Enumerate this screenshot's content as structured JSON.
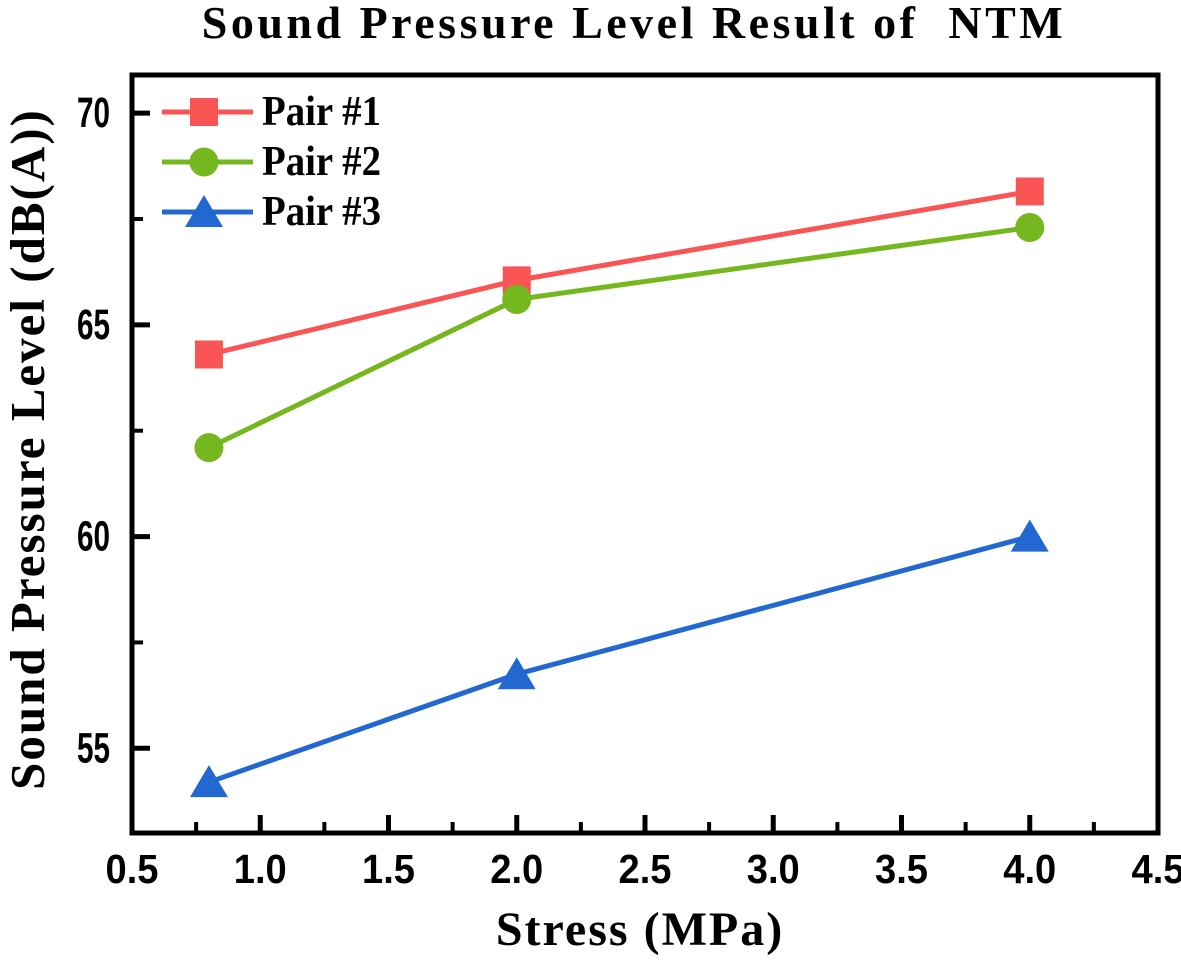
{
  "chart_data": {
    "type": "line",
    "title": "Sound Pressure Level Result of  NTM",
    "xlabel": "Stress (MPa)",
    "ylabel": "Sound Pressure Level (dB(A))",
    "xlim": [
      0.5,
      4.5
    ],
    "ylim": [
      53.0,
      70.9
    ],
    "x_major_ticks": [
      0.5,
      1.0,
      1.5,
      2.0,
      2.5,
      3.0,
      3.5,
      4.0,
      4.5
    ],
    "x_tick_labels": [
      "0.5",
      "1.0",
      "1.5",
      "2.0",
      "2.5",
      "3.0",
      "3.5",
      "4.0",
      "4.5"
    ],
    "x_minor_ticks": [
      0.75,
      1.25,
      1.75,
      2.25,
      2.75,
      3.25,
      3.75,
      4.25
    ],
    "y_major_ticks": [
      55,
      60,
      65,
      70
    ],
    "y_tick_labels": [
      "55",
      "60",
      "65",
      "70"
    ],
    "y_minor_ticks": [
      57.5,
      62.5,
      67.5
    ],
    "x": [
      0.8,
      2.0,
      4.0
    ],
    "series": [
      {
        "name": "Pair #1",
        "marker": "square",
        "color": "#FA5555",
        "values": [
          64.3,
          66.05,
          68.15
        ]
      },
      {
        "name": "Pair #2",
        "marker": "circle",
        "color": "#74B71F",
        "values": [
          62.1,
          65.6,
          67.3
        ]
      },
      {
        "name": "Pair #3",
        "marker": "triangle",
        "color": "#2268D0",
        "values": [
          54.2,
          56.75,
          60.0
        ]
      }
    ],
    "legend_position": "upper-left",
    "grid": false,
    "text_color": "#000000"
  }
}
